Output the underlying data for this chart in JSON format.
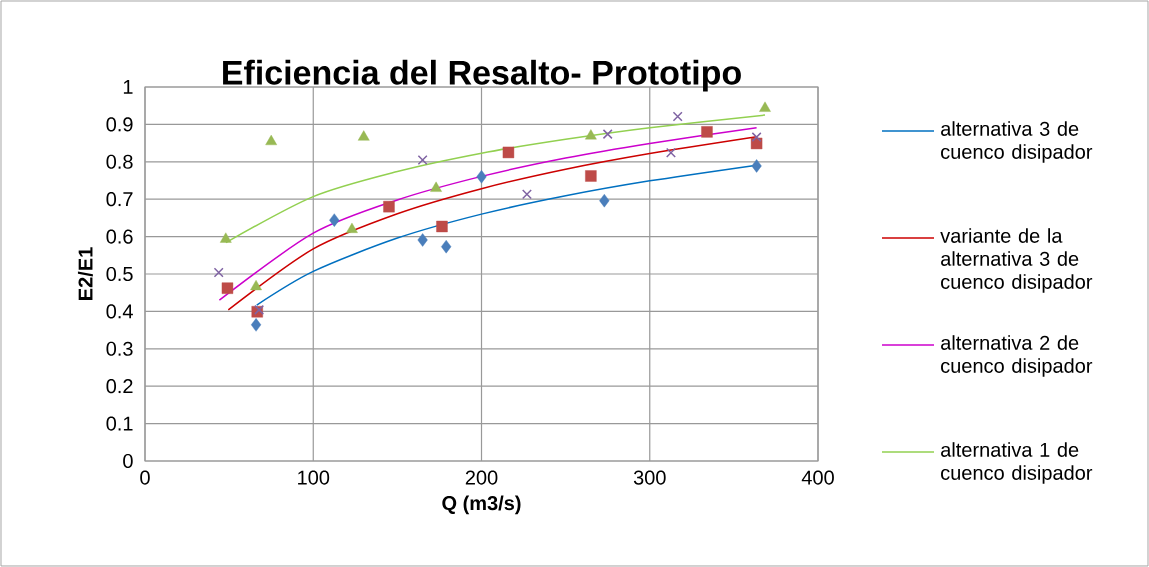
{
  "chart_data": {
    "type": "scatter",
    "title": "Eficiencia del Resalto- Prototipo",
    "xlabel": "Q (m3/s)",
    "ylabel": "E2/E1",
    "xlim": [
      0,
      400
    ],
    "xticks": [
      0,
      100,
      200,
      300,
      400
    ],
    "ylim": [
      0,
      1
    ],
    "yticks": [
      0,
      0.1,
      0.2,
      0.3,
      0.4,
      0.5,
      0.6,
      0.7,
      0.8,
      0.9,
      1
    ],
    "grid": true,
    "legend": "right",
    "series": [
      {
        "marker": "diamond",
        "color": "#4a7ebb",
        "x": [
          66,
          112.5,
          165,
          179,
          200,
          273,
          363.5
        ],
        "values": [
          0.364,
          0.644,
          0.591,
          0.573,
          0.76,
          0.696,
          0.789
        ]
      },
      {
        "marker": "square",
        "color": "#be4b48",
        "x": [
          49,
          66.7,
          145,
          176.5,
          216,
          265,
          334,
          363.5
        ],
        "values": [
          0.462,
          0.399,
          0.68,
          0.627,
          0.825,
          0.762,
          0.88,
          0.849
        ]
      },
      {
        "marker": "cross",
        "color": "#7f63a3",
        "x": [
          43.8,
          67.8,
          165,
          227,
          275,
          312.6,
          316.6,
          363.5
        ],
        "values": [
          0.504,
          0.404,
          0.805,
          0.713,
          0.874,
          0.824,
          0.921,
          0.866
        ]
      },
      {
        "marker": "triangle",
        "color": "#98b954",
        "x": [
          48,
          75,
          66,
          130,
          123,
          173,
          265,
          368.5
        ],
        "values": [
          0.593,
          0.854,
          0.466,
          0.866,
          0.619,
          0.729,
          0.869,
          0.943
        ]
      },
      {
        "type": "line",
        "name": "alternativa 3 de cuenco disipador",
        "color": "#0070c0",
        "x": [
          66.4,
          100,
          150,
          200,
          250,
          300,
          363.5
        ],
        "values": [
          0.417,
          0.507,
          0.596,
          0.66,
          0.709,
          0.749,
          0.791
        ]
      },
      {
        "type": "line",
        "name": "variante de la alternativa 3 de cuenco disipador",
        "color": "#cc0000",
        "x": [
          49.5,
          100,
          150,
          200,
          250,
          300,
          363.5
        ],
        "values": [
          0.404,
          0.567,
          0.661,
          0.728,
          0.78,
          0.822,
          0.867
        ]
      },
      {
        "type": "line",
        "name": "alternativa 2 de cuenco disipador",
        "color": "#cc00cc",
        "x": [
          44.2,
          100,
          150,
          200,
          250,
          300,
          363.5
        ],
        "values": [
          0.43,
          0.609,
          0.698,
          0.761,
          0.81,
          0.849,
          0.891
        ]
      },
      {
        "type": "line",
        "name": "alternativa 1 de cuenco disipador",
        "color": "#92d050",
        "x": [
          48.1,
          100,
          150,
          200,
          250,
          300,
          368.5
        ],
        "values": [
          0.584,
          0.707,
          0.774,
          0.823,
          0.86,
          0.891,
          0.925
        ]
      }
    ]
  }
}
